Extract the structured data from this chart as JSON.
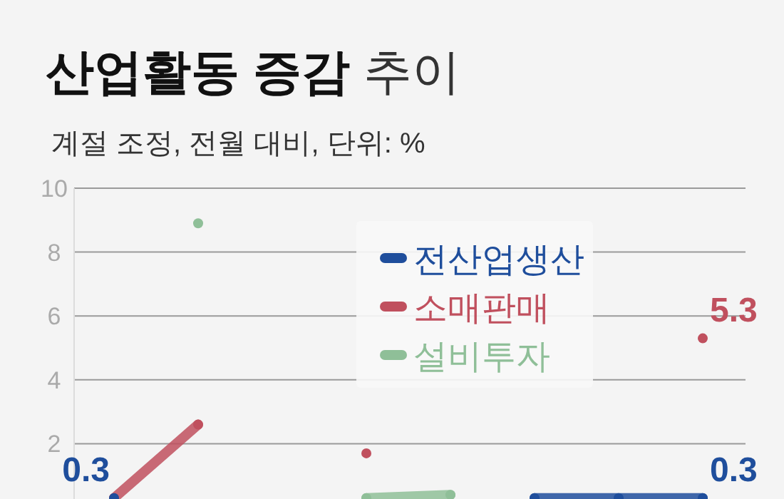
{
  "chart_data": {
    "type": "line",
    "title": "산업활동 증감 추이",
    "subtitle": "계절 조정, 전월 대비, 단위: %",
    "categories": [
      null,
      null,
      null,
      null,
      null,
      null,
      null,
      null
    ],
    "series": [
      {
        "name": "전산업생산",
        "color": "#1f4e9c",
        "values": [
          0.3,
          null,
          null,
          null,
          null,
          0.3,
          0.3,
          0.3
        ],
        "value_labels": [
          "0.3",
          null,
          null,
          null,
          null,
          null,
          null,
          "0.3"
        ]
      },
      {
        "name": "소매판매",
        "color": "#c0505e",
        "values": [
          0.3,
          2.6,
          null,
          1.7,
          null,
          null,
          null,
          5.3
        ],
        "value_labels": [
          null,
          null,
          null,
          null,
          null,
          null,
          null,
          "5.3"
        ]
      },
      {
        "name": "설비투자",
        "color": "#8fbf98",
        "values": [
          null,
          8.9,
          null,
          0.3,
          0.4,
          null,
          null,
          null
        ]
      }
    ],
    "ylim": [
      0.27,
      10
    ],
    "marker": "circle",
    "yticks": [
      2,
      4,
      6,
      8,
      10
    ],
    "grid": "y",
    "legend": "top right",
    "tick_labels": "y"
  }
}
